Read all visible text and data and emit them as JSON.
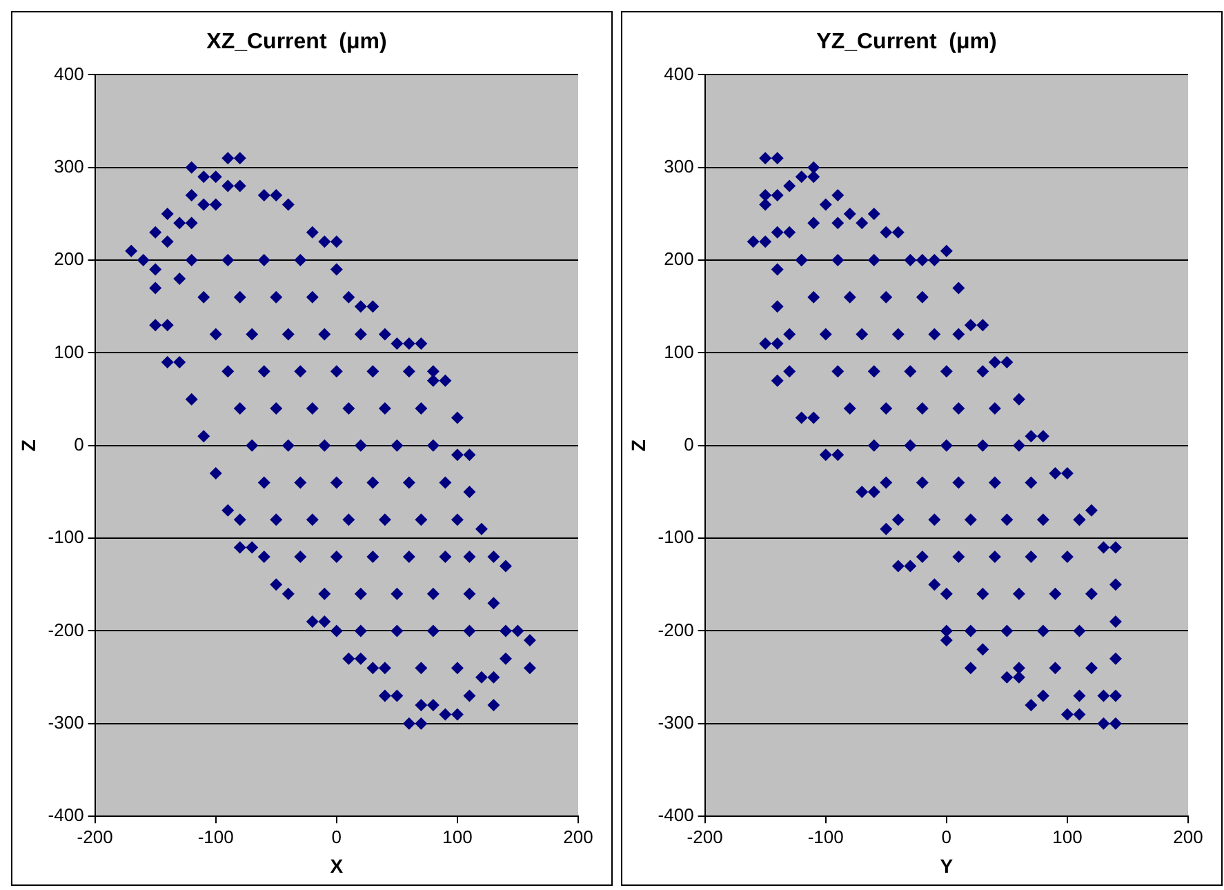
{
  "chart_data": [
    {
      "type": "scatter",
      "title": "XZ_Current  (μm)",
      "xlabel": "X",
      "ylabel": "Z",
      "xlim": [
        -200,
        200
      ],
      "xticks": [
        -200,
        -100,
        0,
        100,
        200
      ],
      "ylim": [
        -400,
        400
      ],
      "yticks": [
        -400,
        -300,
        -200,
        -100,
        0,
        100,
        200,
        300,
        400
      ],
      "grid": "y",
      "legend": false,
      "marker": "diamond",
      "series": [
        {
          "color": "#000080",
          "x": [
            -170,
            -160,
            -150,
            -140,
            -120,
            -110,
            -100,
            -90,
            -80,
            -120,
            -90,
            -80,
            -60,
            -50,
            -40,
            -20,
            -10,
            0,
            0,
            10,
            20,
            30,
            40,
            50,
            60,
            70,
            80,
            80,
            90,
            100,
            100,
            110,
            110,
            120,
            130,
            140,
            130,
            140,
            150,
            160,
            160,
            140,
            130,
            130,
            120,
            110,
            100,
            90,
            80,
            70,
            60,
            70,
            50,
            40,
            30,
            20,
            10,
            0,
            -10,
            -20,
            -40,
            -50,
            -60,
            -70,
            -80,
            -90,
            -80,
            -100,
            -110,
            -120,
            -130,
            -140,
            -140,
            -150,
            -150,
            -150,
            -130,
            -140,
            -130,
            -120,
            -100,
            -110,
            -120,
            -90,
            -60,
            -30,
            -110,
            -80,
            -50,
            -20,
            -100,
            -70,
            -40,
            -10,
            20,
            -90,
            -60,
            -30,
            0,
            30,
            60,
            -80,
            -50,
            -20,
            10,
            40,
            70,
            -70,
            -40,
            -10,
            20,
            50,
            80,
            -60,
            -30,
            0,
            30,
            60,
            90,
            -50,
            -20,
            10,
            40,
            70,
            100,
            -30,
            0,
            30,
            60,
            90,
            110,
            -10,
            20,
            50,
            80,
            110,
            20,
            50,
            80,
            110,
            40,
            70,
            100
          ],
          "values": [
            210,
            200,
            230,
            250,
            300,
            290,
            290,
            310,
            310,
            270,
            280,
            280,
            270,
            270,
            260,
            230,
            220,
            220,
            190,
            160,
            150,
            150,
            120,
            110,
            110,
            110,
            80,
            70,
            70,
            30,
            -10,
            -10,
            -50,
            -90,
            -120,
            -130,
            -170,
            -200,
            -200,
            -210,
            -240,
            -230,
            -250,
            -280,
            -250,
            -270,
            -290,
            -290,
            -280,
            -300,
            -300,
            -280,
            -270,
            -270,
            -240,
            -230,
            -230,
            -200,
            -190,
            -190,
            -160,
            -150,
            -120,
            -110,
            -110,
            -70,
            -80,
            -30,
            10,
            50,
            90,
            90,
            130,
            130,
            170,
            190,
            180,
            220,
            240,
            240,
            260,
            260,
            200,
            200,
            200,
            200,
            160,
            160,
            160,
            160,
            120,
            120,
            120,
            120,
            120,
            80,
            80,
            80,
            80,
            80,
            80,
            40,
            40,
            40,
            40,
            40,
            40,
            0,
            0,
            0,
            0,
            0,
            0,
            -40,
            -40,
            -40,
            -40,
            -40,
            -40,
            -80,
            -80,
            -80,
            -80,
            -80,
            -80,
            -120,
            -120,
            -120,
            -120,
            -120,
            -120,
            -160,
            -160,
            -160,
            -160,
            -160,
            -200,
            -200,
            -200,
            -200,
            -240,
            -240,
            -240
          ]
        }
      ]
    },
    {
      "type": "scatter",
      "title": "YZ_Current  (μm)",
      "xlabel": "Y",
      "ylabel": "Z",
      "xlim": [
        -200,
        200
      ],
      "xticks": [
        -200,
        -100,
        0,
        100,
        200
      ],
      "ylim": [
        -400,
        400
      ],
      "yticks": [
        -400,
        -300,
        -200,
        -100,
        0,
        100,
        200,
        300,
        400
      ],
      "grid": "y",
      "legend": false,
      "marker": "diamond",
      "series": [
        {
          "color": "#000080",
          "x": [
            -150,
            -140,
            -110,
            -110,
            -120,
            -130,
            -150,
            -150,
            -140,
            -160,
            -150,
            -140,
            -140,
            -140,
            -150,
            -140,
            -130,
            -140,
            -130,
            -120,
            -110,
            -100,
            -90,
            -70,
            -60,
            -50,
            -40,
            -30,
            -10,
            0,
            0,
            20,
            30,
            50,
            60,
            70,
            80,
            100,
            110,
            110,
            130,
            140,
            140,
            130,
            140,
            140,
            140,
            140,
            130,
            120,
            110,
            100,
            90,
            80,
            70,
            60,
            50,
            40,
            30,
            20,
            10,
            0,
            -10,
            -20,
            -40,
            -50,
            -60,
            -70,
            -90,
            -80,
            -100,
            -130,
            -120,
            -110,
            -90,
            -120,
            -90,
            -60,
            -30,
            -110,
            -80,
            -50,
            -20,
            -100,
            -70,
            -40,
            -10,
            10,
            -90,
            -60,
            -30,
            0,
            30,
            -80,
            -50,
            -20,
            10,
            40,
            -60,
            -30,
            0,
            30,
            60,
            -50,
            -20,
            10,
            40,
            70,
            -40,
            -10,
            20,
            50,
            80,
            110,
            -20,
            10,
            40,
            70,
            100,
            0,
            30,
            60,
            90,
            120,
            20,
            50,
            80,
            110,
            60,
            90,
            120
          ],
          "values": [
            310,
            310,
            300,
            290,
            290,
            280,
            270,
            260,
            270,
            220,
            220,
            230,
            190,
            150,
            110,
            110,
            120,
            70,
            80,
            30,
            30,
            -10,
            -10,
            -50,
            -50,
            -90,
            -130,
            -130,
            -150,
            -210,
            -200,
            -240,
            -220,
            -250,
            -250,
            -280,
            -270,
            -290,
            -290,
            -270,
            -300,
            -300,
            -270,
            -270,
            -230,
            -190,
            -150,
            -110,
            -110,
            -70,
            -80,
            -30,
            -30,
            10,
            10,
            50,
            90,
            90,
            130,
            130,
            170,
            210,
            200,
            200,
            230,
            230,
            250,
            240,
            270,
            250,
            260,
            230,
            200,
            240,
            240,
            200,
            200,
            200,
            200,
            160,
            160,
            160,
            160,
            120,
            120,
            120,
            120,
            120,
            80,
            80,
            80,
            80,
            80,
            40,
            40,
            40,
            40,
            40,
            0,
            0,
            0,
            0,
            0,
            -40,
            -40,
            -40,
            -40,
            -40,
            -80,
            -80,
            -80,
            -80,
            -80,
            -80,
            -120,
            -120,
            -120,
            -120,
            -120,
            -160,
            -160,
            -160,
            -160,
            -160,
            -200,
            -200,
            -200,
            -200,
            -240,
            -240,
            -240
          ]
        }
      ]
    }
  ]
}
